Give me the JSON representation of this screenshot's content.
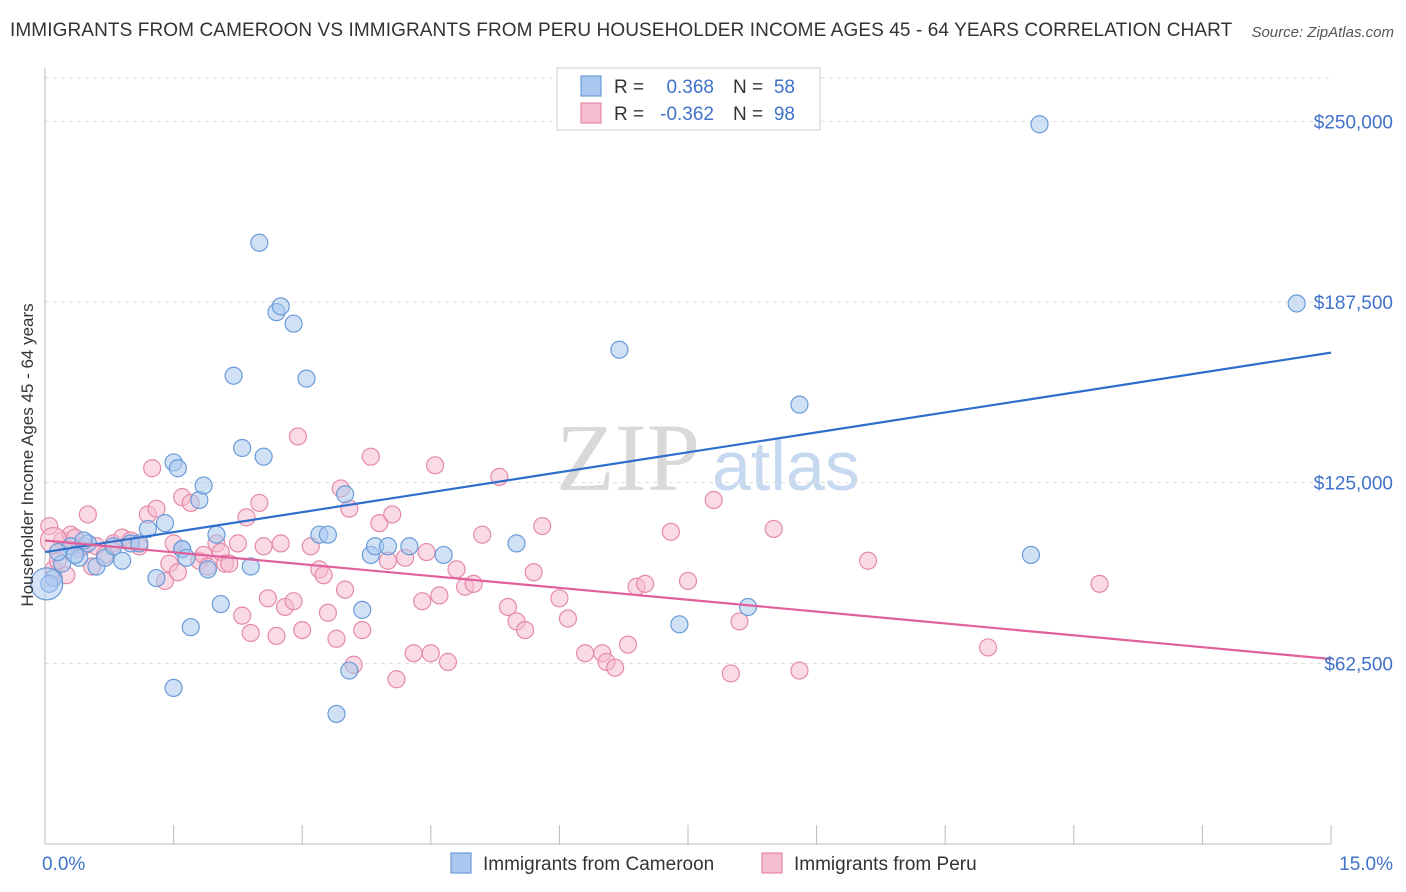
{
  "title": "IMMIGRANTS FROM CAMEROON VS IMMIGRANTS FROM PERU HOUSEHOLDER INCOME AGES 45 - 64 YEARS CORRELATION CHART",
  "source": "Source: ZipAtlas.com",
  "watermark": {
    "zip": "ZIP",
    "atlas": "atlas"
  },
  "colors": {
    "cameroon_fill": "#aac8ef",
    "cameroon_stroke": "#6a9bd8",
    "cameroon_line": "#2e6fcc",
    "peru_fill": "#f6bcd0",
    "peru_stroke": "#e58aa9",
    "peru_line": "#e0609a",
    "axis_label": "#3f72c8",
    "grid": "#dddddd"
  },
  "stats": [
    {
      "r_label": "R =",
      "r_value": "0.368",
      "n_label": "N =",
      "n_value": "58"
    },
    {
      "r_label": "R =",
      "r_value": "-0.362",
      "n_label": "N =",
      "n_value": "98"
    }
  ],
  "chart_data": {
    "type": "scatter",
    "ylabel": "Householder Income Ages 45 - 64 years",
    "xlim": [
      0,
      15
    ],
    "ylim": [
      0,
      265000
    ],
    "x_ticks": [
      {
        "value": 0,
        "label": "0.0%"
      },
      {
        "value": 15,
        "label": "15.0%"
      }
    ],
    "y_ticks": [
      {
        "value": 62500,
        "label": "$62,500"
      },
      {
        "value": 125000,
        "label": "$125,000"
      },
      {
        "value": 187500,
        "label": "$187,500"
      },
      {
        "value": 250000,
        "label": "$250,000"
      }
    ],
    "grid": true,
    "legend_position": "bottom-center",
    "series": [
      {
        "name": "Immigrants from Cameroon",
        "trend": [
          [
            0,
            101000
          ],
          [
            15,
            170000
          ]
        ],
        "points": [
          [
            0.1,
            92000
          ],
          [
            0.2,
            97000
          ],
          [
            0.3,
            103000
          ],
          [
            0.4,
            99000
          ],
          [
            0.5,
            104000
          ],
          [
            0.6,
            96000
          ],
          [
            0.7,
            99000
          ],
          [
            0.8,
            103000
          ],
          [
            0.9,
            98000
          ],
          [
            1.0,
            104000
          ],
          [
            1.1,
            104000
          ],
          [
            1.2,
            109000
          ],
          [
            1.3,
            92000
          ],
          [
            1.4,
            111000
          ],
          [
            1.5,
            54000
          ],
          [
            1.6,
            102000
          ],
          [
            1.5,
            132000
          ],
          [
            1.55,
            130000
          ],
          [
            1.6,
            102000
          ],
          [
            1.65,
            99000
          ],
          [
            1.7,
            75000
          ],
          [
            1.8,
            119000
          ],
          [
            1.85,
            124000
          ],
          [
            1.9,
            95000
          ],
          [
            2.0,
            107000
          ],
          [
            2.05,
            83000
          ],
          [
            2.2,
            162000
          ],
          [
            2.3,
            137000
          ],
          [
            2.4,
            96000
          ],
          [
            2.5,
            208000
          ],
          [
            2.55,
            134000
          ],
          [
            2.7,
            184000
          ],
          [
            2.75,
            186000
          ],
          [
            2.9,
            180000
          ],
          [
            3.05,
            161000
          ],
          [
            3.2,
            107000
          ],
          [
            3.3,
            107000
          ],
          [
            3.4,
            45000
          ],
          [
            3.5,
            121000
          ],
          [
            3.55,
            60000
          ],
          [
            3.7,
            81000
          ],
          [
            3.8,
            100000
          ],
          [
            3.85,
            103000
          ],
          [
            4.0,
            103000
          ],
          [
            4.25,
            103000
          ],
          [
            4.65,
            100000
          ],
          [
            5.5,
            104000
          ],
          [
            6.7,
            171000
          ],
          [
            7.4,
            76000
          ],
          [
            8.2,
            82000
          ],
          [
            8.8,
            152000
          ],
          [
            11.5,
            100000
          ],
          [
            11.6,
            249000
          ],
          [
            14.6,
            187000
          ],
          [
            0.05,
            90000
          ],
          [
            0.15,
            101000
          ],
          [
            0.35,
            100000
          ],
          [
            0.45,
            105000
          ]
        ]
      },
      {
        "name": "Immigrants from Peru",
        "trend": [
          [
            0,
            105000
          ],
          [
            15,
            64000
          ]
        ],
        "points": [
          [
            0.1,
            95000
          ],
          [
            0.2,
            105000
          ],
          [
            0.3,
            107000
          ],
          [
            0.4,
            102000
          ],
          [
            0.5,
            114000
          ],
          [
            0.6,
            103000
          ],
          [
            0.7,
            100000
          ],
          [
            0.8,
            104000
          ],
          [
            0.9,
            106000
          ],
          [
            1.0,
            105000
          ],
          [
            1.1,
            103000
          ],
          [
            1.2,
            114000
          ],
          [
            1.25,
            130000
          ],
          [
            1.3,
            116000
          ],
          [
            1.4,
            91000
          ],
          [
            1.45,
            97000
          ],
          [
            1.5,
            104000
          ],
          [
            1.55,
            94000
          ],
          [
            1.6,
            120000
          ],
          [
            1.7,
            118000
          ],
          [
            1.8,
            98000
          ],
          [
            1.85,
            100000
          ],
          [
            1.9,
            96000
          ],
          [
            2.0,
            104000
          ],
          [
            2.05,
            101000
          ],
          [
            2.1,
            97000
          ],
          [
            2.15,
            97000
          ],
          [
            2.25,
            104000
          ],
          [
            2.3,
            79000
          ],
          [
            2.35,
            113000
          ],
          [
            2.4,
            73000
          ],
          [
            2.5,
            118000
          ],
          [
            2.55,
            103000
          ],
          [
            2.6,
            85000
          ],
          [
            2.7,
            72000
          ],
          [
            2.75,
            104000
          ],
          [
            2.8,
            82000
          ],
          [
            2.9,
            84000
          ],
          [
            2.95,
            141000
          ],
          [
            3.0,
            74000
          ],
          [
            3.1,
            103000
          ],
          [
            3.2,
            95000
          ],
          [
            3.25,
            93000
          ],
          [
            3.3,
            80000
          ],
          [
            3.4,
            71000
          ],
          [
            3.45,
            123000
          ],
          [
            3.5,
            88000
          ],
          [
            3.55,
            116000
          ],
          [
            3.6,
            62000
          ],
          [
            3.7,
            74000
          ],
          [
            3.8,
            134000
          ],
          [
            3.9,
            111000
          ],
          [
            4.0,
            98000
          ],
          [
            4.05,
            114000
          ],
          [
            4.1,
            57000
          ],
          [
            4.2,
            99000
          ],
          [
            4.3,
            66000
          ],
          [
            4.4,
            84000
          ],
          [
            4.45,
            101000
          ],
          [
            4.5,
            66000
          ],
          [
            4.55,
            131000
          ],
          [
            4.6,
            86000
          ],
          [
            4.7,
            63000
          ],
          [
            4.8,
            95000
          ],
          [
            4.9,
            89000
          ],
          [
            5.0,
            90000
          ],
          [
            5.1,
            107000
          ],
          [
            5.3,
            127000
          ],
          [
            5.4,
            82000
          ],
          [
            5.5,
            77000
          ],
          [
            5.6,
            74000
          ],
          [
            5.7,
            94000
          ],
          [
            5.8,
            110000
          ],
          [
            6.0,
            85000
          ],
          [
            6.1,
            78000
          ],
          [
            6.3,
            66000
          ],
          [
            6.5,
            66000
          ],
          [
            6.55,
            63000
          ],
          [
            6.65,
            61000
          ],
          [
            6.8,
            69000
          ],
          [
            6.9,
            89000
          ],
          [
            7.0,
            90000
          ],
          [
            7.3,
            108000
          ],
          [
            7.5,
            91000
          ],
          [
            7.8,
            119000
          ],
          [
            8.0,
            59000
          ],
          [
            8.1,
            77000
          ],
          [
            8.5,
            109000
          ],
          [
            8.8,
            60000
          ],
          [
            9.6,
            98000
          ],
          [
            11.0,
            68000
          ],
          [
            12.3,
            90000
          ],
          [
            0.05,
            110000
          ],
          [
            0.15,
            98000
          ],
          [
            0.25,
            93000
          ],
          [
            0.35,
            106000
          ],
          [
            0.45,
            103000
          ],
          [
            0.55,
            96000
          ]
        ]
      }
    ]
  }
}
